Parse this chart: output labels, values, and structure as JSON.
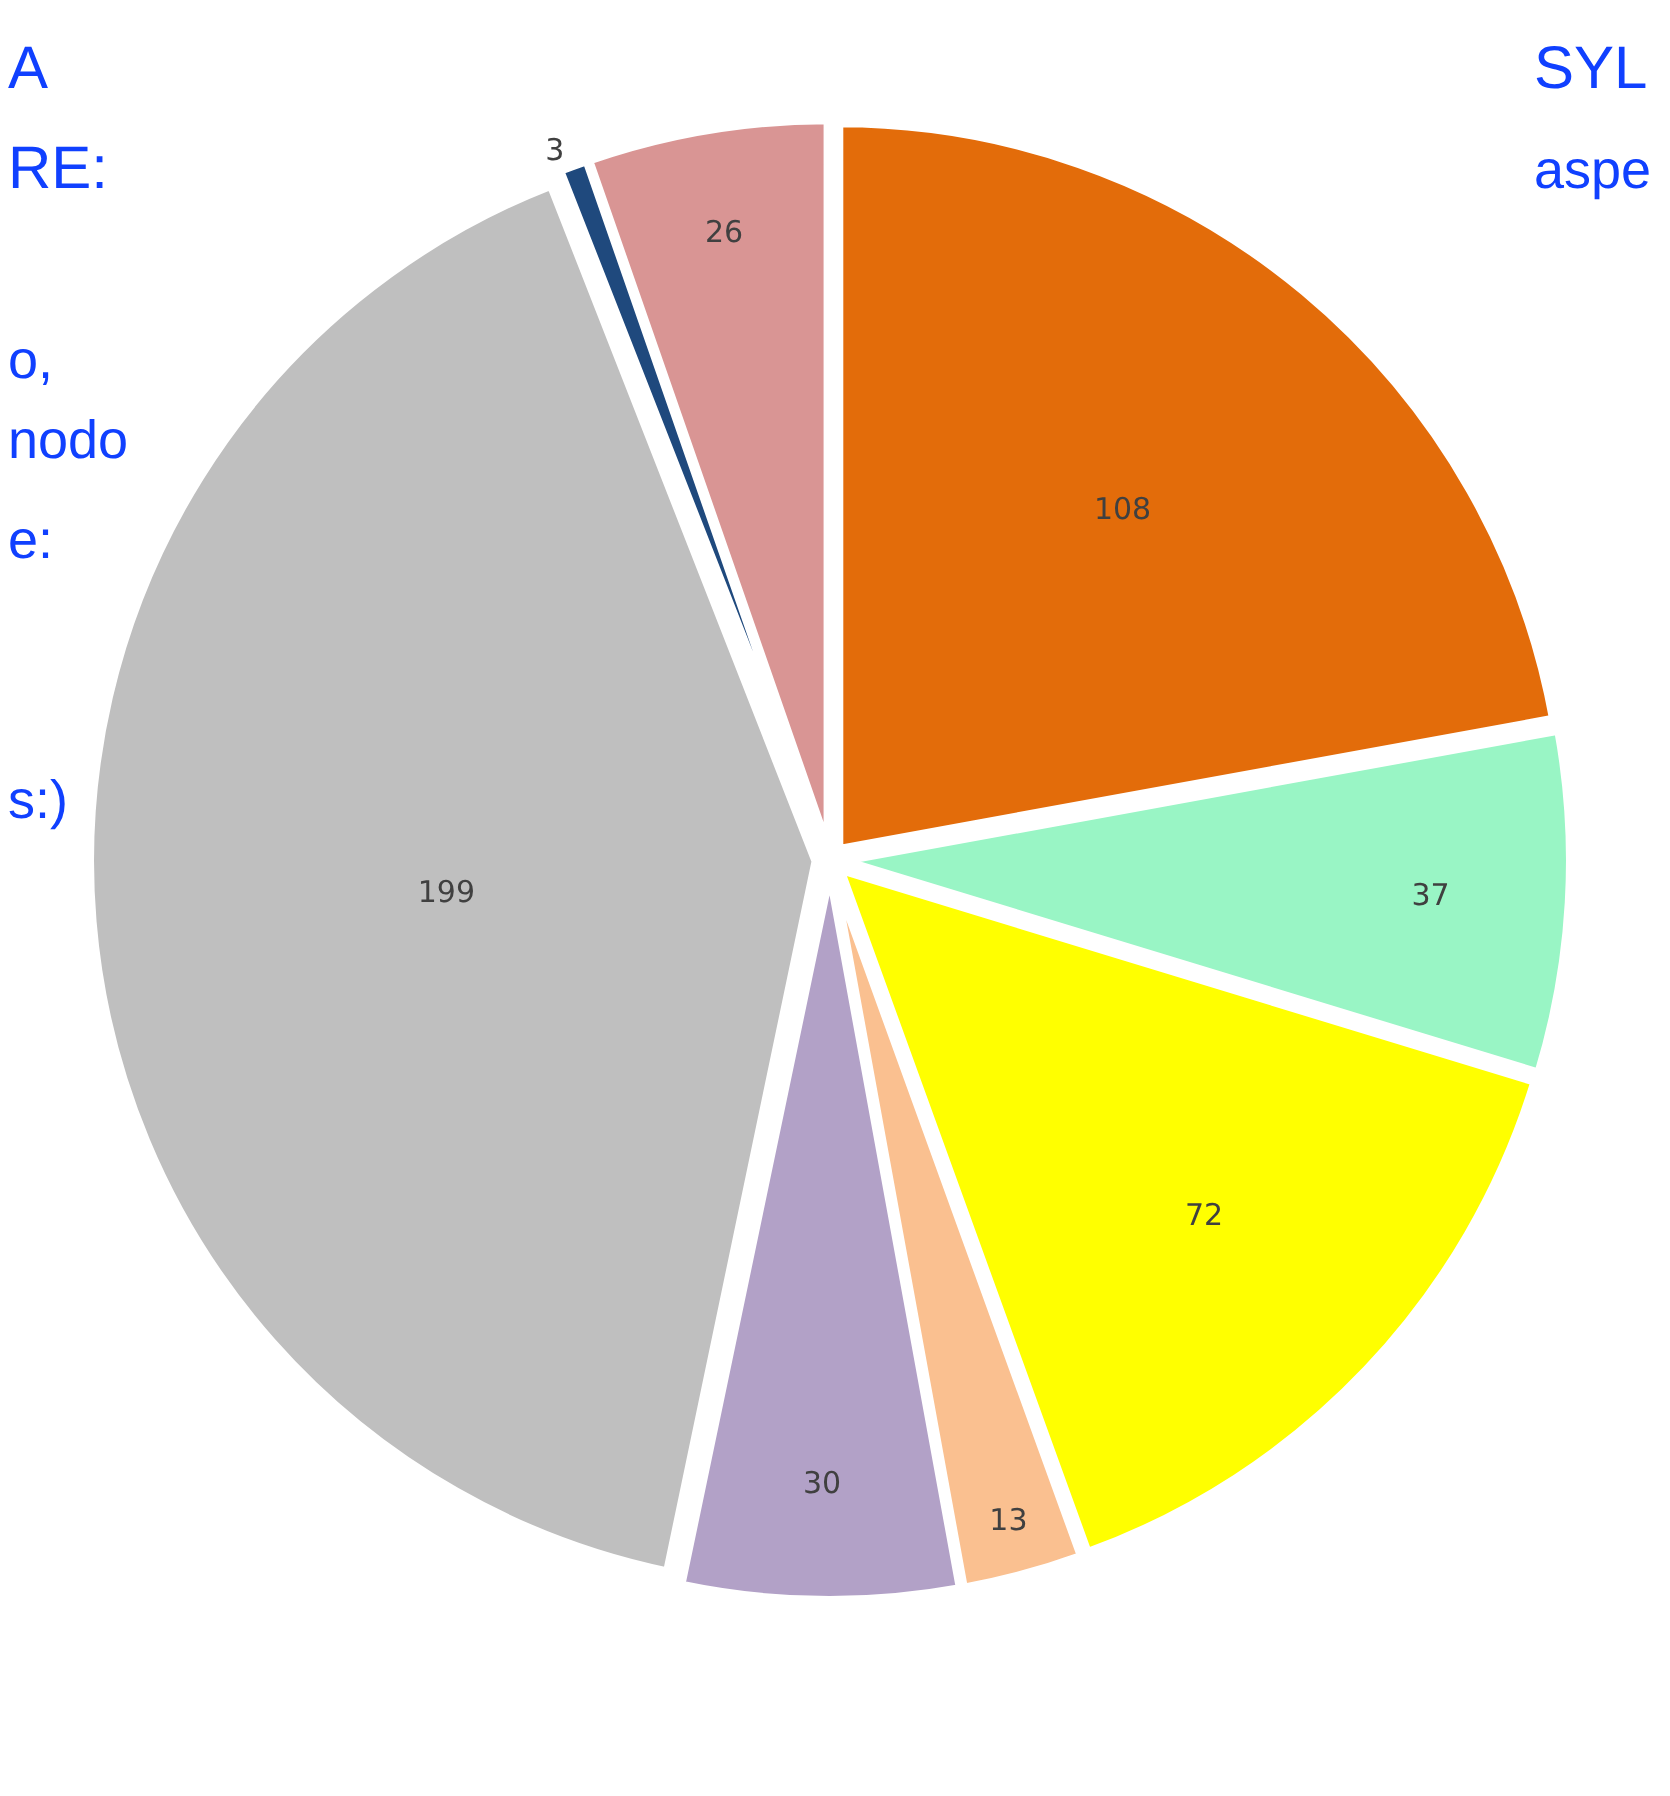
{
  "chart_data": {
    "type": "pie",
    "categories": [
      null,
      null,
      null,
      null,
      null,
      null,
      null,
      null
    ],
    "values": [
      108,
      37,
      72,
      13,
      30,
      199,
      3,
      26
    ],
    "colors": [
      "#e36c0a",
      "#99f5c5",
      "#ffff00",
      "#fac090",
      "#b2a1c7",
      "#bfbfbf",
      "#1f497d",
      "#d99594"
    ],
    "data_labels": true,
    "legend": false,
    "annotations": [
      "A",
      "RE:",
      "o,",
      "nodo",
      "e:",
      "s:)",
      "SYL",
      "aspe"
    ]
  }
}
